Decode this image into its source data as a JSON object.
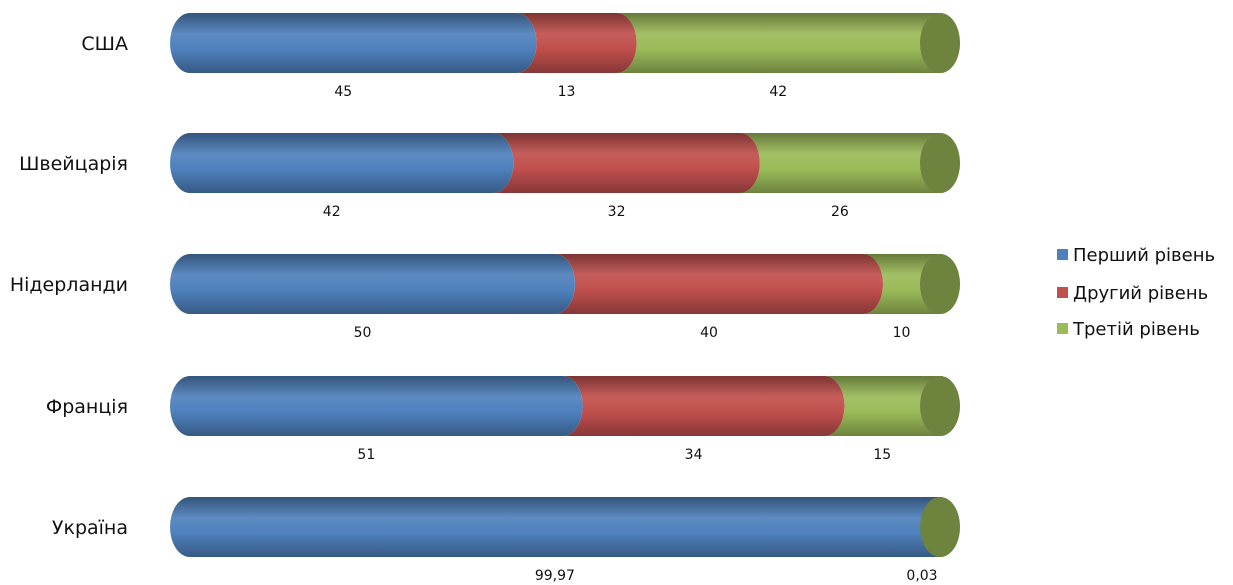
{
  "chart_data": {
    "type": "bar",
    "orientation": "horizontal",
    "stacked": "percent",
    "categories": [
      "США",
      "Швейцарія",
      "Нідерланди",
      "Франція",
      "Україна"
    ],
    "category_labels": [
      "США",
      "Швейцарія",
      "Нідерланди",
      "Франція",
      "Україна"
    ],
    "series": [
      {
        "name": "Перший рівень",
        "color": "#4f81bd",
        "values": [
          45,
          42,
          50,
          51,
          99.97
        ],
        "value_labels": [
          "45",
          "42",
          "50",
          "51",
          "99,97"
        ]
      },
      {
        "name": "Другий рівень",
        "color": "#c0504d",
        "values": [
          13,
          32,
          40,
          34,
          0
        ],
        "value_labels": [
          "13",
          "32",
          "40",
          "34",
          ""
        ]
      },
      {
        "name": "Третій рівень",
        "color": "#9bbb59",
        "values": [
          42,
          26,
          10,
          15,
          0.03
        ],
        "value_labels": [
          "42",
          "26",
          "10",
          "15",
          "0,03"
        ]
      }
    ],
    "legend_labels": [
      "Перший рівень",
      "Другий рівень",
      "Третій рівень"
    ],
    "xlim": [
      0,
      100
    ],
    "legend_position": "right",
    "grid": false,
    "style": "3d-cylinder"
  }
}
